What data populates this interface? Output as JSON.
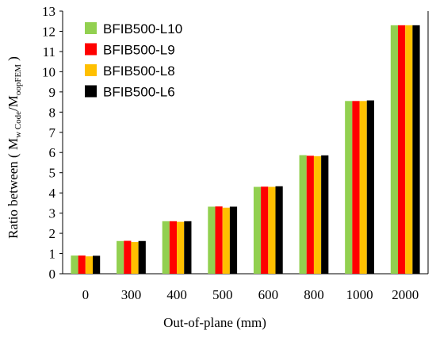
{
  "chart_data": {
    "type": "bar",
    "xlabel": "Out-of-plane (mm)",
    "ylabel": {
      "prefix": "Ratio between ( M",
      "sub1": "w Code",
      "mid": "/M",
      "sub2": "oopFEM",
      "suffix": " )"
    },
    "categories": [
      "0",
      "300",
      "400",
      "500",
      "600",
      "800",
      "1000",
      "2000"
    ],
    "ylim": [
      0,
      13
    ],
    "yticks": [
      "0",
      "1",
      "2",
      "3",
      "4",
      "5",
      "6",
      "7",
      "8",
      "9",
      "10",
      "11",
      "12",
      "13"
    ],
    "grid": false,
    "legend_position": "top-left",
    "series": [
      {
        "name": "BFIB500-L10",
        "color": "#92d050",
        "values": [
          0.9,
          1.62,
          2.6,
          3.32,
          4.3,
          5.87,
          8.55,
          12.3
        ]
      },
      {
        "name": "BFIB500-L9",
        "color": "#ff0000",
        "values": [
          0.9,
          1.63,
          2.6,
          3.33,
          4.31,
          5.84,
          8.55,
          12.3
        ]
      },
      {
        "name": "BFIB500-L8",
        "color": "#ffc000",
        "values": [
          0.86,
          1.57,
          2.57,
          3.27,
          4.3,
          5.82,
          8.55,
          12.3
        ]
      },
      {
        "name": "BFIB500-L6",
        "color": "#000000",
        "values": [
          0.89,
          1.62,
          2.6,
          3.32,
          4.33,
          5.86,
          8.58,
          12.3
        ]
      }
    ]
  }
}
